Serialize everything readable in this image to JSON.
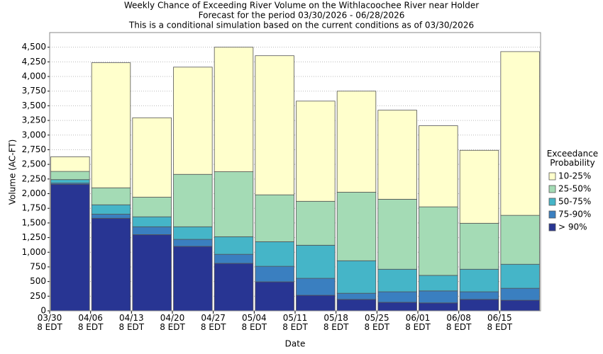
{
  "chart_data": {
    "type": "stacked_bar",
    "title_lines": [
      "Weekly Chance of Exceeding River Volume on the Withlacoochee River near Holder",
      "Forecast for the period 03/30/2026 - 06/28/2026",
      "This is a conditional simulation based on the current conditions as of 03/30/2026"
    ],
    "x_label": "Date",
    "y_label": "Volume (AC-FT)",
    "legend_title": "Exceedance\nProbability",
    "categories": [
      "03/30\n8 EDT",
      "04/06\n8 EDT",
      "04/13\n8 EDT",
      "04/20\n8 EDT",
      "04/27\n8 EDT",
      "05/04\n8 EDT",
      "05/11\n8 EDT",
      "05/18\n8 EDT",
      "05/25\n8 EDT",
      "06/01\n8 EDT",
      "06/08\n8 EDT",
      "06/15\n8 EDT"
    ],
    "series": [
      {
        "name": "> 90%",
        "color": "#283593",
        "values": [
          2160,
          1580,
          1300,
          1100,
          810,
          495,
          265,
          195,
          145,
          135,
          195,
          180
        ]
      },
      {
        "name": "75-90%",
        "color": "#3a7fc0",
        "values": [
          20,
          70,
          135,
          120,
          155,
          265,
          290,
          105,
          180,
          205,
          130,
          205
        ]
      },
      {
        "name": "50-75%",
        "color": "#45b5c8",
        "values": [
          60,
          160,
          170,
          215,
          300,
          420,
          565,
          555,
          385,
          265,
          385,
          410
        ]
      },
      {
        "name": "25-50%",
        "color": "#a4dbb5",
        "values": [
          140,
          290,
          335,
          895,
          1110,
          800,
          750,
          1170,
          1195,
          1170,
          785,
          835
        ]
      },
      {
        "name": "10-25%",
        "color": "#ffffcc",
        "values": [
          250,
          2135,
          1355,
          1830,
          2125,
          2375,
          1710,
          1725,
          1520,
          1385,
          1245,
          2795
        ]
      }
    ],
    "ylim": [
      0,
      4750
    ],
    "yticks": [
      0,
      250,
      500,
      750,
      {
        "value": 1000,
        "label": "1,000"
      },
      {
        "value": 1250,
        "label": "1,250"
      },
      {
        "value": 1500,
        "label": "1,500"
      },
      {
        "value": 1750,
        "label": "1,750"
      },
      {
        "value": 2000,
        "label": "2,000"
      },
      {
        "value": 2250,
        "label": "2,250"
      },
      {
        "value": 2500,
        "label": "2,500"
      },
      {
        "value": 2750,
        "label": "2,750"
      },
      {
        "value": 3000,
        "label": "3,000"
      },
      {
        "value": 3250,
        "label": "3,250"
      },
      {
        "value": 3500,
        "label": "3,500"
      },
      {
        "value": 3750,
        "label": "3,750"
      },
      {
        "value": 4000,
        "label": "4,000"
      },
      {
        "value": 4250,
        "label": "4,250"
      },
      {
        "value": 4500,
        "label": "4,500"
      }
    ],
    "grid": true
  }
}
